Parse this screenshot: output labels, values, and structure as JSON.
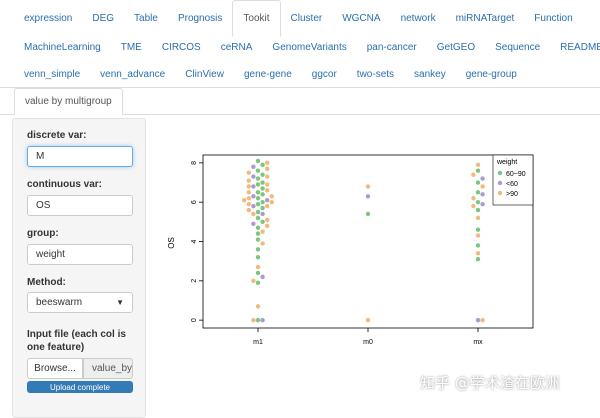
{
  "nav": {
    "row1": [
      "expression",
      "DEG",
      "Table",
      "Prognosis",
      "Tookit",
      "Cluster",
      "WGCNA",
      "network",
      "miRNATarget",
      "Function"
    ],
    "row2": [
      "MachineLearning",
      "TME",
      "CIRCOS",
      "ceRNA",
      "GenomeVariants",
      "pan-cancer",
      "GetGEO",
      "Sequence",
      "README"
    ],
    "row3": [
      "venn_simple",
      "venn_advance",
      "ClinView",
      "gene-gene",
      "ggcor",
      "two-sets",
      "sankey",
      "gene-group"
    ],
    "active": "Tookit",
    "subtab": "value by multigroup"
  },
  "sidebar": {
    "discrete_label": "discrete var:",
    "discrete_value": "M",
    "continuous_label": "continuous var:",
    "continuous_value": "OS",
    "group_label": "group:",
    "group_value": "weight",
    "method_label": "Method:",
    "method_value": "beeswarm",
    "file_label_1": "Input file (each col is",
    "file_label_2": "one feature)",
    "browse": "Browse...",
    "file_name": "value_by",
    "progress": "Upload complete"
  },
  "chart_data": {
    "type": "beeswarm",
    "y_label": "OS",
    "categories": [
      "m1",
      "m0",
      "mx"
    ],
    "ylim": [
      -0.4,
      8.4
    ],
    "yticks": [
      0,
      2,
      4,
      6,
      8
    ],
    "legend_title": "weight",
    "legend": "top-right",
    "series": [
      {
        "name": "60~90",
        "color": "#7cc67c",
        "values": [
          [
            8.1,
            7.9,
            7.6,
            7.4,
            7.2,
            7.0,
            6.9,
            6.7,
            6.5,
            6.4,
            6.2,
            6.0,
            5.9,
            5.7,
            5.5,
            5.2,
            5.0,
            4.7,
            4.4,
            4.1,
            3.6,
            3.2,
            2.4,
            1.9,
            0
          ],
          [
            5.4
          ],
          [
            7.6,
            7.0,
            6.5,
            6.0,
            5.6,
            4.6,
            3.8,
            3.1
          ]
        ]
      },
      {
        "name": "<60",
        "color": "#a99bd0",
        "values": [
          [
            7.8,
            7.3,
            6.8,
            6.3,
            6.1,
            5.8,
            5.4,
            4.9,
            2.2,
            0
          ],
          [
            6.3
          ],
          [
            7.2,
            6.4,
            5.9,
            0
          ]
        ]
      },
      {
        "name": ">90",
        "color": "#f7b77a",
        "values": [
          [
            8.0,
            7.7,
            7.5,
            7.3,
            7.1,
            6.9,
            6.8,
            6.6,
            6.5,
            6.3,
            6.2,
            6.1,
            6.0,
            5.9,
            5.8,
            5.6,
            5.4,
            5.1,
            4.8,
            4.5,
            3.9,
            2.7,
            2.0,
            0.7,
            0
          ],
          [
            6.8,
            0
          ],
          [
            7.9,
            7.4,
            6.8,
            6.2,
            5.8,
            5.2,
            4.3,
            3.4,
            0
          ]
        ]
      }
    ]
  },
  "watermark": "知乎 @学术渣在欧洲"
}
